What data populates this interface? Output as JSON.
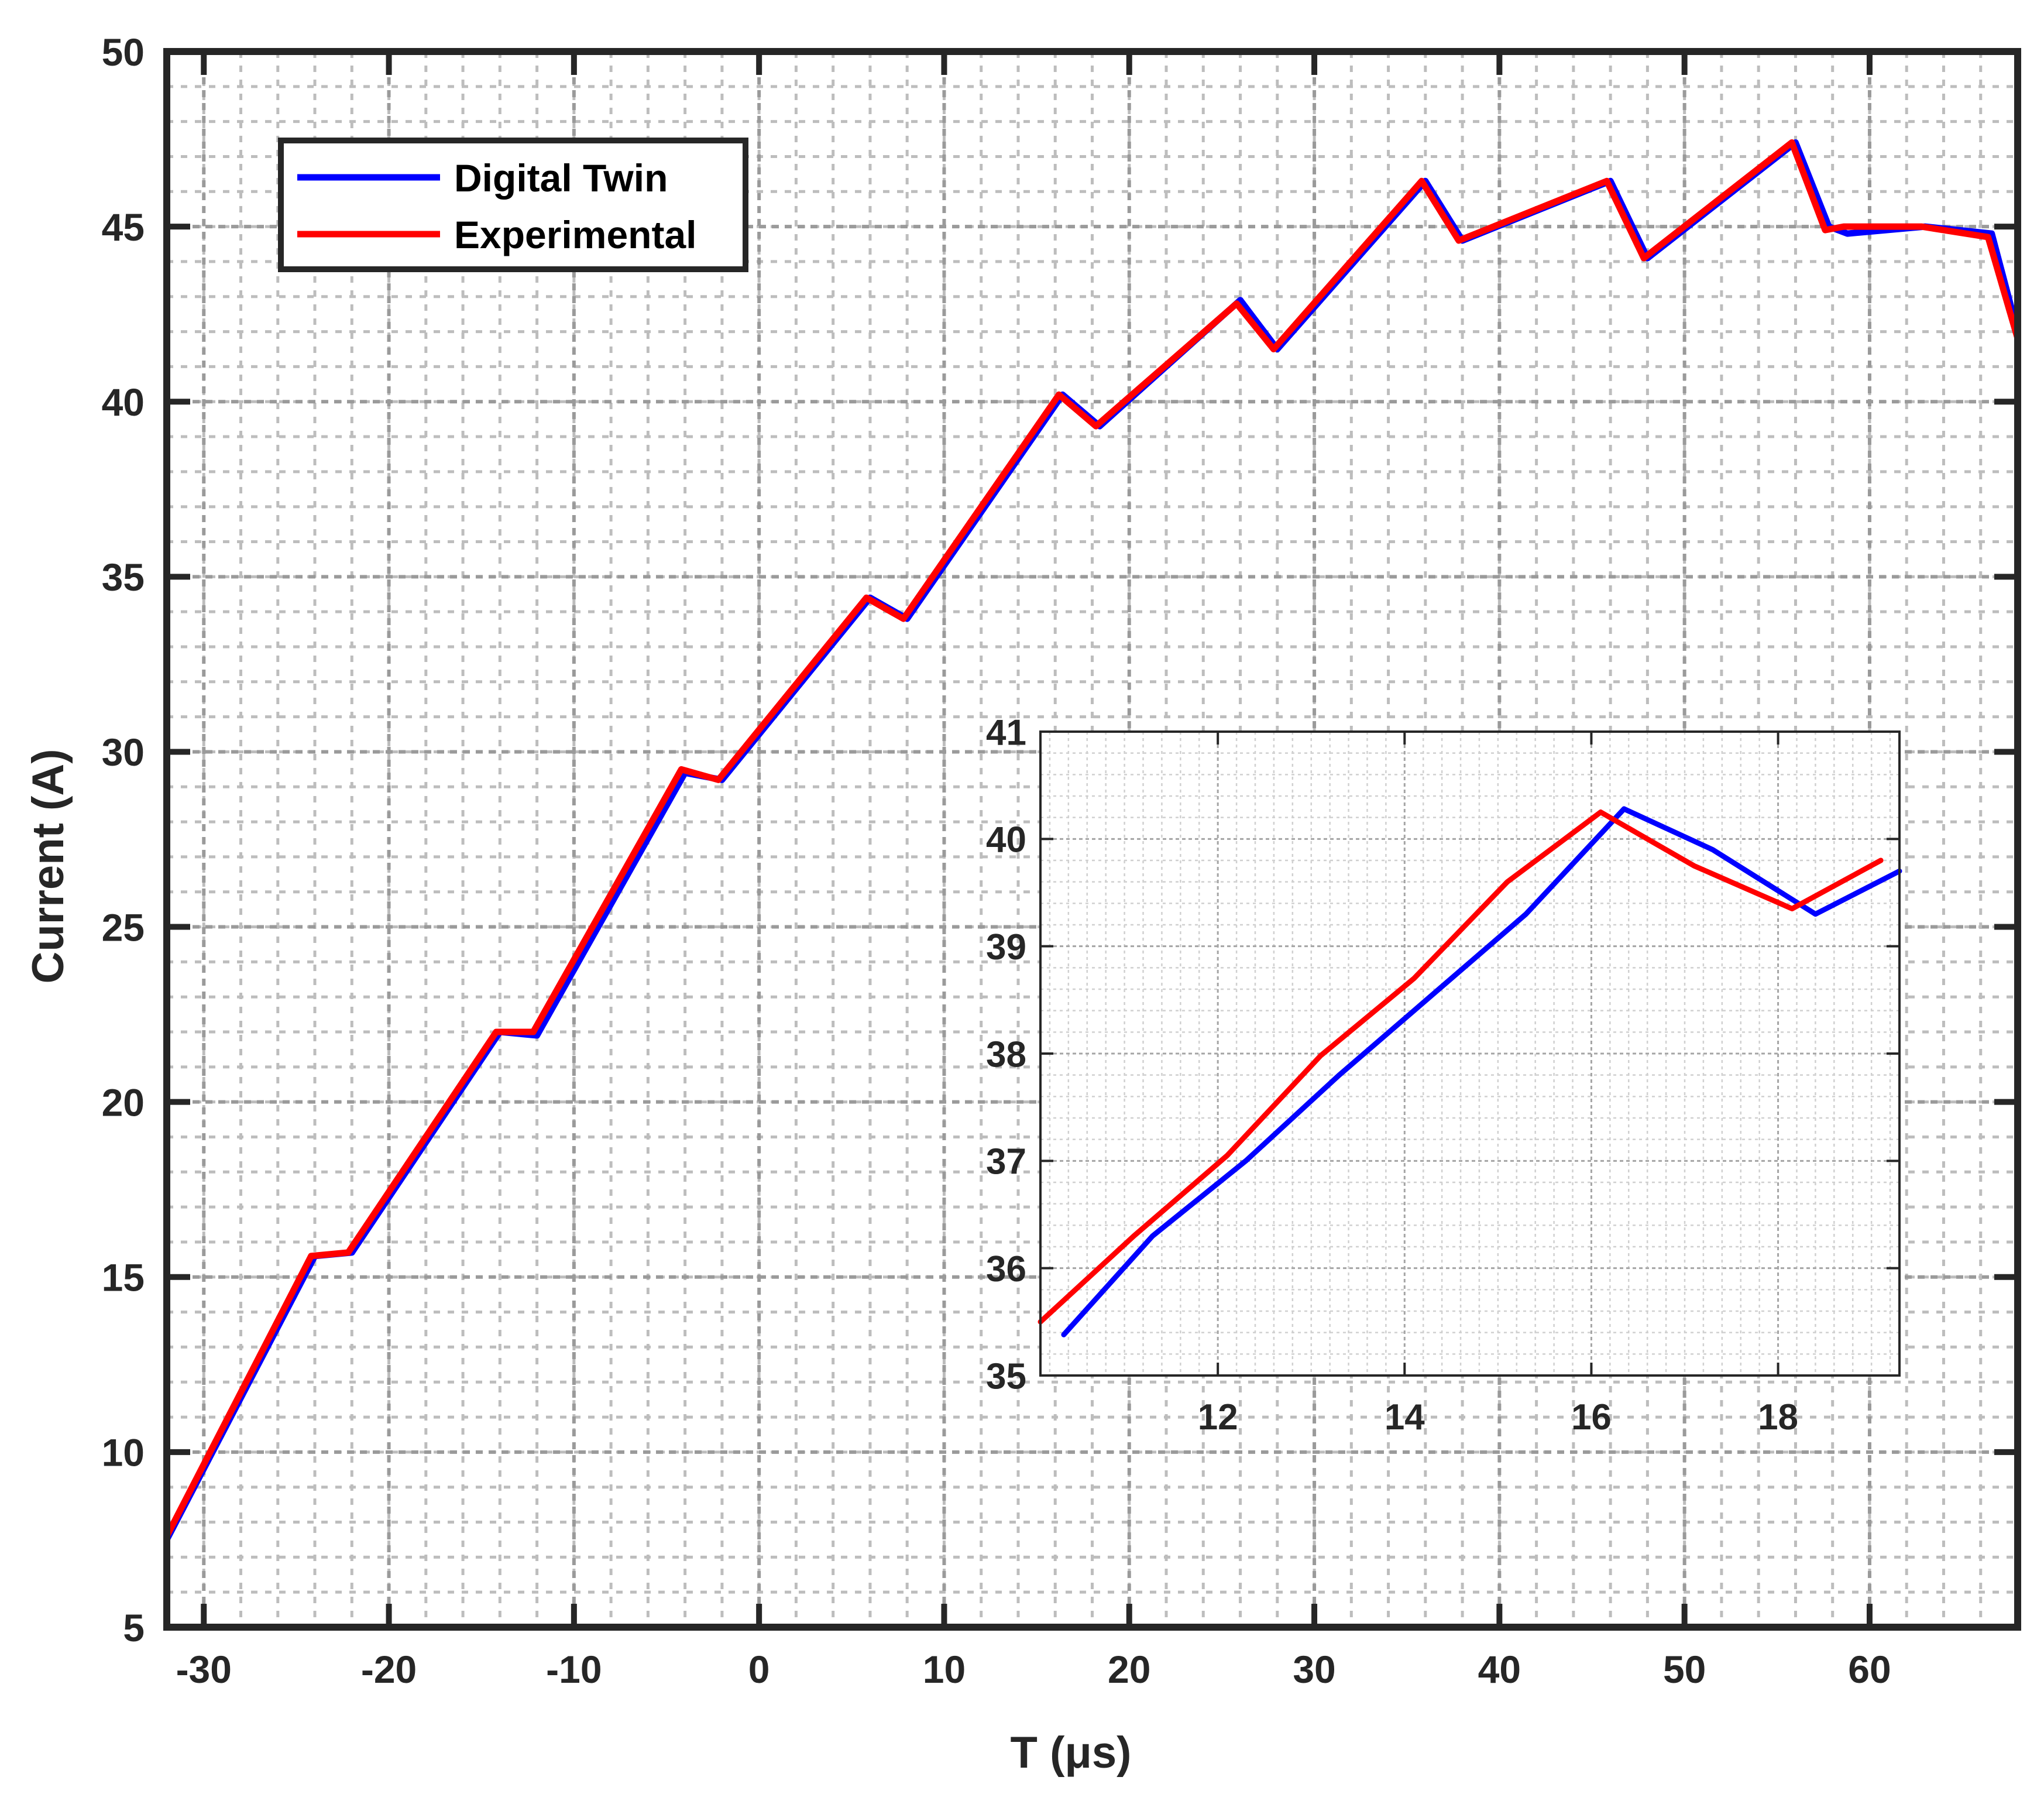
{
  "chart_data": [
    {
      "type": "line",
      "title": "",
      "xlabel": "T (μs)",
      "ylabel": "Current (A)",
      "xlim": [
        -32,
        68
      ],
      "ylim": [
        5,
        50
      ],
      "xticks": [
        -30,
        -20,
        -10,
        0,
        10,
        20,
        30,
        40,
        50,
        60
      ],
      "xtick_labels": [
        "-30",
        "-20",
        "-10",
        "0",
        "10",
        "20",
        "30",
        "40",
        "50",
        "60"
      ],
      "yticks": [
        5,
        10,
        15,
        20,
        25,
        30,
        35,
        40,
        45,
        50
      ],
      "ytick_labels": [
        "5",
        "10",
        "15",
        "20",
        "25",
        "30",
        "35",
        "40",
        "45",
        "50"
      ],
      "grid": true,
      "minor_grid": true,
      "legend_position": "top-left",
      "series": [
        {
          "name": "Digital Twin",
          "color": "#0000ff",
          "x": [
            -32,
            -24,
            -22,
            -14,
            -12,
            -4,
            -2,
            6,
            8,
            16.4,
            18.4,
            26,
            28,
            36,
            38,
            46,
            48,
            56,
            57.8,
            58.8,
            63,
            66.6,
            68
          ],
          "y": [
            7.5,
            15.6,
            15.7,
            22.0,
            21.9,
            29.4,
            29.2,
            34.4,
            33.8,
            40.2,
            39.3,
            42.9,
            41.5,
            46.3,
            44.6,
            46.3,
            44.1,
            47.4,
            45.0,
            44.8,
            45.0,
            44.8,
            42.0
          ]
        },
        {
          "name": "Experimental",
          "color": "#ff0000",
          "x": [
            -32,
            -24.2,
            -22.2,
            -14.2,
            -12.2,
            -4.2,
            -2.2,
            5.8,
            7.8,
            16.2,
            18.2,
            25.8,
            27.8,
            35.8,
            37.8,
            45.8,
            47.8,
            55.8,
            57.6,
            58.6,
            62.8,
            66.4,
            68
          ],
          "y": [
            7.6,
            15.6,
            15.7,
            22.0,
            22.0,
            29.5,
            29.2,
            34.4,
            33.8,
            40.2,
            39.3,
            42.8,
            41.5,
            46.3,
            44.6,
            46.3,
            44.1,
            47.4,
            44.9,
            45.0,
            45.0,
            44.7,
            41.8
          ]
        }
      ]
    },
    {
      "type": "line",
      "title": "",
      "xlabel": "",
      "ylabel": "",
      "xlim": [
        10.1,
        19.3
      ],
      "ylim": [
        35,
        41
      ],
      "xticks": [
        12,
        14,
        16,
        18
      ],
      "xtick_labels": [
        "12",
        "14",
        "16",
        "18"
      ],
      "yticks": [
        35,
        36,
        37,
        38,
        39,
        40,
        41
      ],
      "ytick_labels": [
        "35",
        "36",
        "37",
        "38",
        "39",
        "40",
        "41"
      ],
      "grid": true,
      "minor_grid": true,
      "series": [
        {
          "color": "#0000ff",
          "x": [
            10.35,
            11.3,
            12.3,
            13.3,
            14.3,
            15.3,
            16.35,
            17.3,
            18.4,
            19.3
          ],
          "y": [
            35.38,
            36.3,
            37.0,
            37.8,
            38.55,
            39.3,
            40.28,
            39.9,
            39.3,
            39.7
          ]
        },
        {
          "color": "#ff0000",
          "x": [
            10.1,
            11.1,
            12.1,
            13.1,
            14.1,
            15.1,
            16.1,
            17.1,
            18.15,
            19.1
          ],
          "y": [
            35.5,
            36.3,
            37.05,
            37.98,
            38.7,
            39.6,
            40.25,
            39.75,
            39.35,
            39.8
          ]
        }
      ]
    }
  ]
}
